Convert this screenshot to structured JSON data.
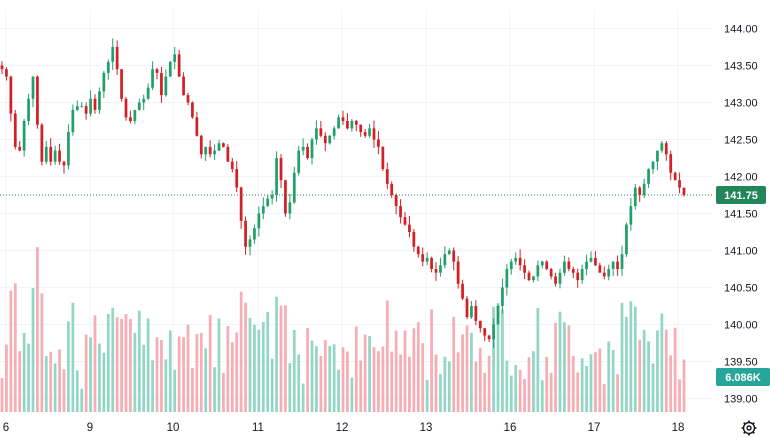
{
  "colors": {
    "up": "#22a06b",
    "down": "#d32026",
    "vol_up": "#93d6c6",
    "vol_down": "#f4aeb4",
    "grid": "#f0f3fa",
    "price_line": "#2e7d5b",
    "price_badge": "#22865a",
    "vol_badge": "#26a69a"
  },
  "icons": {
    "settings": "gear-icon"
  },
  "chart_data": {
    "type": "candlestick",
    "y_axis": {
      "range": [
        138.85,
        144.25
      ],
      "ticks": [
        "144.00",
        "143.50",
        "143.00",
        "142.50",
        "142.00",
        "141.50",
        "141.00",
        "140.50",
        "140.00",
        "139.50",
        "139.00"
      ],
      "position": "right",
      "grid": true
    },
    "x_axis": {
      "ticks": [
        "6",
        "9",
        "10",
        "11",
        "12",
        "13",
        "16",
        "17",
        "18"
      ],
      "grid": true
    },
    "last_price": "141.75",
    "last_volume": "6.086K",
    "segments": [
      {
        "day": "6",
        "candles": 9,
        "path": [
          143.45,
          143.35,
          142.85,
          142.4,
          142.35,
          142.75,
          143.05,
          143.35,
          142.7
        ]
      },
      {
        "day": "",
        "candles": 9,
        "path": [
          142.2,
          142.4,
          142.2,
          142.35,
          142.2,
          142.15,
          142.6,
          142.9,
          142.95
        ]
      },
      {
        "day": "9",
        "candles": 14,
        "path": [
          142.95,
          142.85,
          143.05,
          142.9,
          143.15,
          143.4,
          143.55,
          143.75,
          143.45,
          143.05,
          142.8,
          142.75,
          142.9,
          143.0
        ]
      },
      {
        "day": "10",
        "candles": 21,
        "path": [
          143.05,
          143.2,
          143.45,
          143.4,
          143.1,
          143.35,
          143.55,
          143.65,
          143.35,
          143.1,
          143.0,
          142.8,
          142.55,
          142.3,
          142.4,
          142.3,
          142.35,
          142.45,
          142.4,
          142.2,
          142.1
        ]
      },
      {
        "day": "11",
        "candles": 21,
        "path": [
          141.85,
          141.4,
          141.05,
          141.15,
          141.3,
          141.5,
          141.6,
          141.7,
          141.75,
          142.25,
          141.95,
          141.5,
          141.65,
          142.05,
          142.35,
          142.4,
          142.25,
          142.5,
          142.65,
          142.55,
          142.45
        ]
      },
      {
        "day": "12",
        "candles": 20,
        "path": [
          142.55,
          142.65,
          142.8,
          142.75,
          142.65,
          142.75,
          142.7,
          142.6,
          142.55,
          142.65,
          142.5,
          142.4,
          142.1,
          141.9,
          141.75,
          141.6,
          141.45,
          141.35,
          141.25,
          141.05
        ]
      },
      {
        "day": "13",
        "candles": 20,
        "path": [
          140.95,
          140.85,
          140.9,
          140.75,
          140.7,
          140.8,
          140.95,
          141.0,
          140.85,
          140.55,
          140.35,
          140.1,
          140.25,
          140.05,
          139.95,
          139.85,
          139.8,
          140.0,
          140.25,
          140.5
        ]
      },
      {
        "day": "16",
        "candles": 20,
        "path": [
          140.75,
          140.85,
          140.9,
          140.8,
          140.7,
          140.6,
          140.65,
          140.8,
          140.85,
          140.75,
          140.65,
          140.55,
          140.7,
          140.85,
          140.75,
          140.7,
          140.6,
          140.75,
          140.85,
          140.9
        ]
      },
      {
        "day": "17",
        "candles": 21,
        "path": [
          140.8,
          140.7,
          140.65,
          140.75,
          140.85,
          140.75,
          140.95,
          141.35,
          141.6,
          141.85,
          141.75,
          141.9,
          142.1,
          142.2,
          142.35,
          142.45,
          142.3,
          142.05,
          141.95,
          141.85,
          141.75
        ]
      }
    ]
  }
}
